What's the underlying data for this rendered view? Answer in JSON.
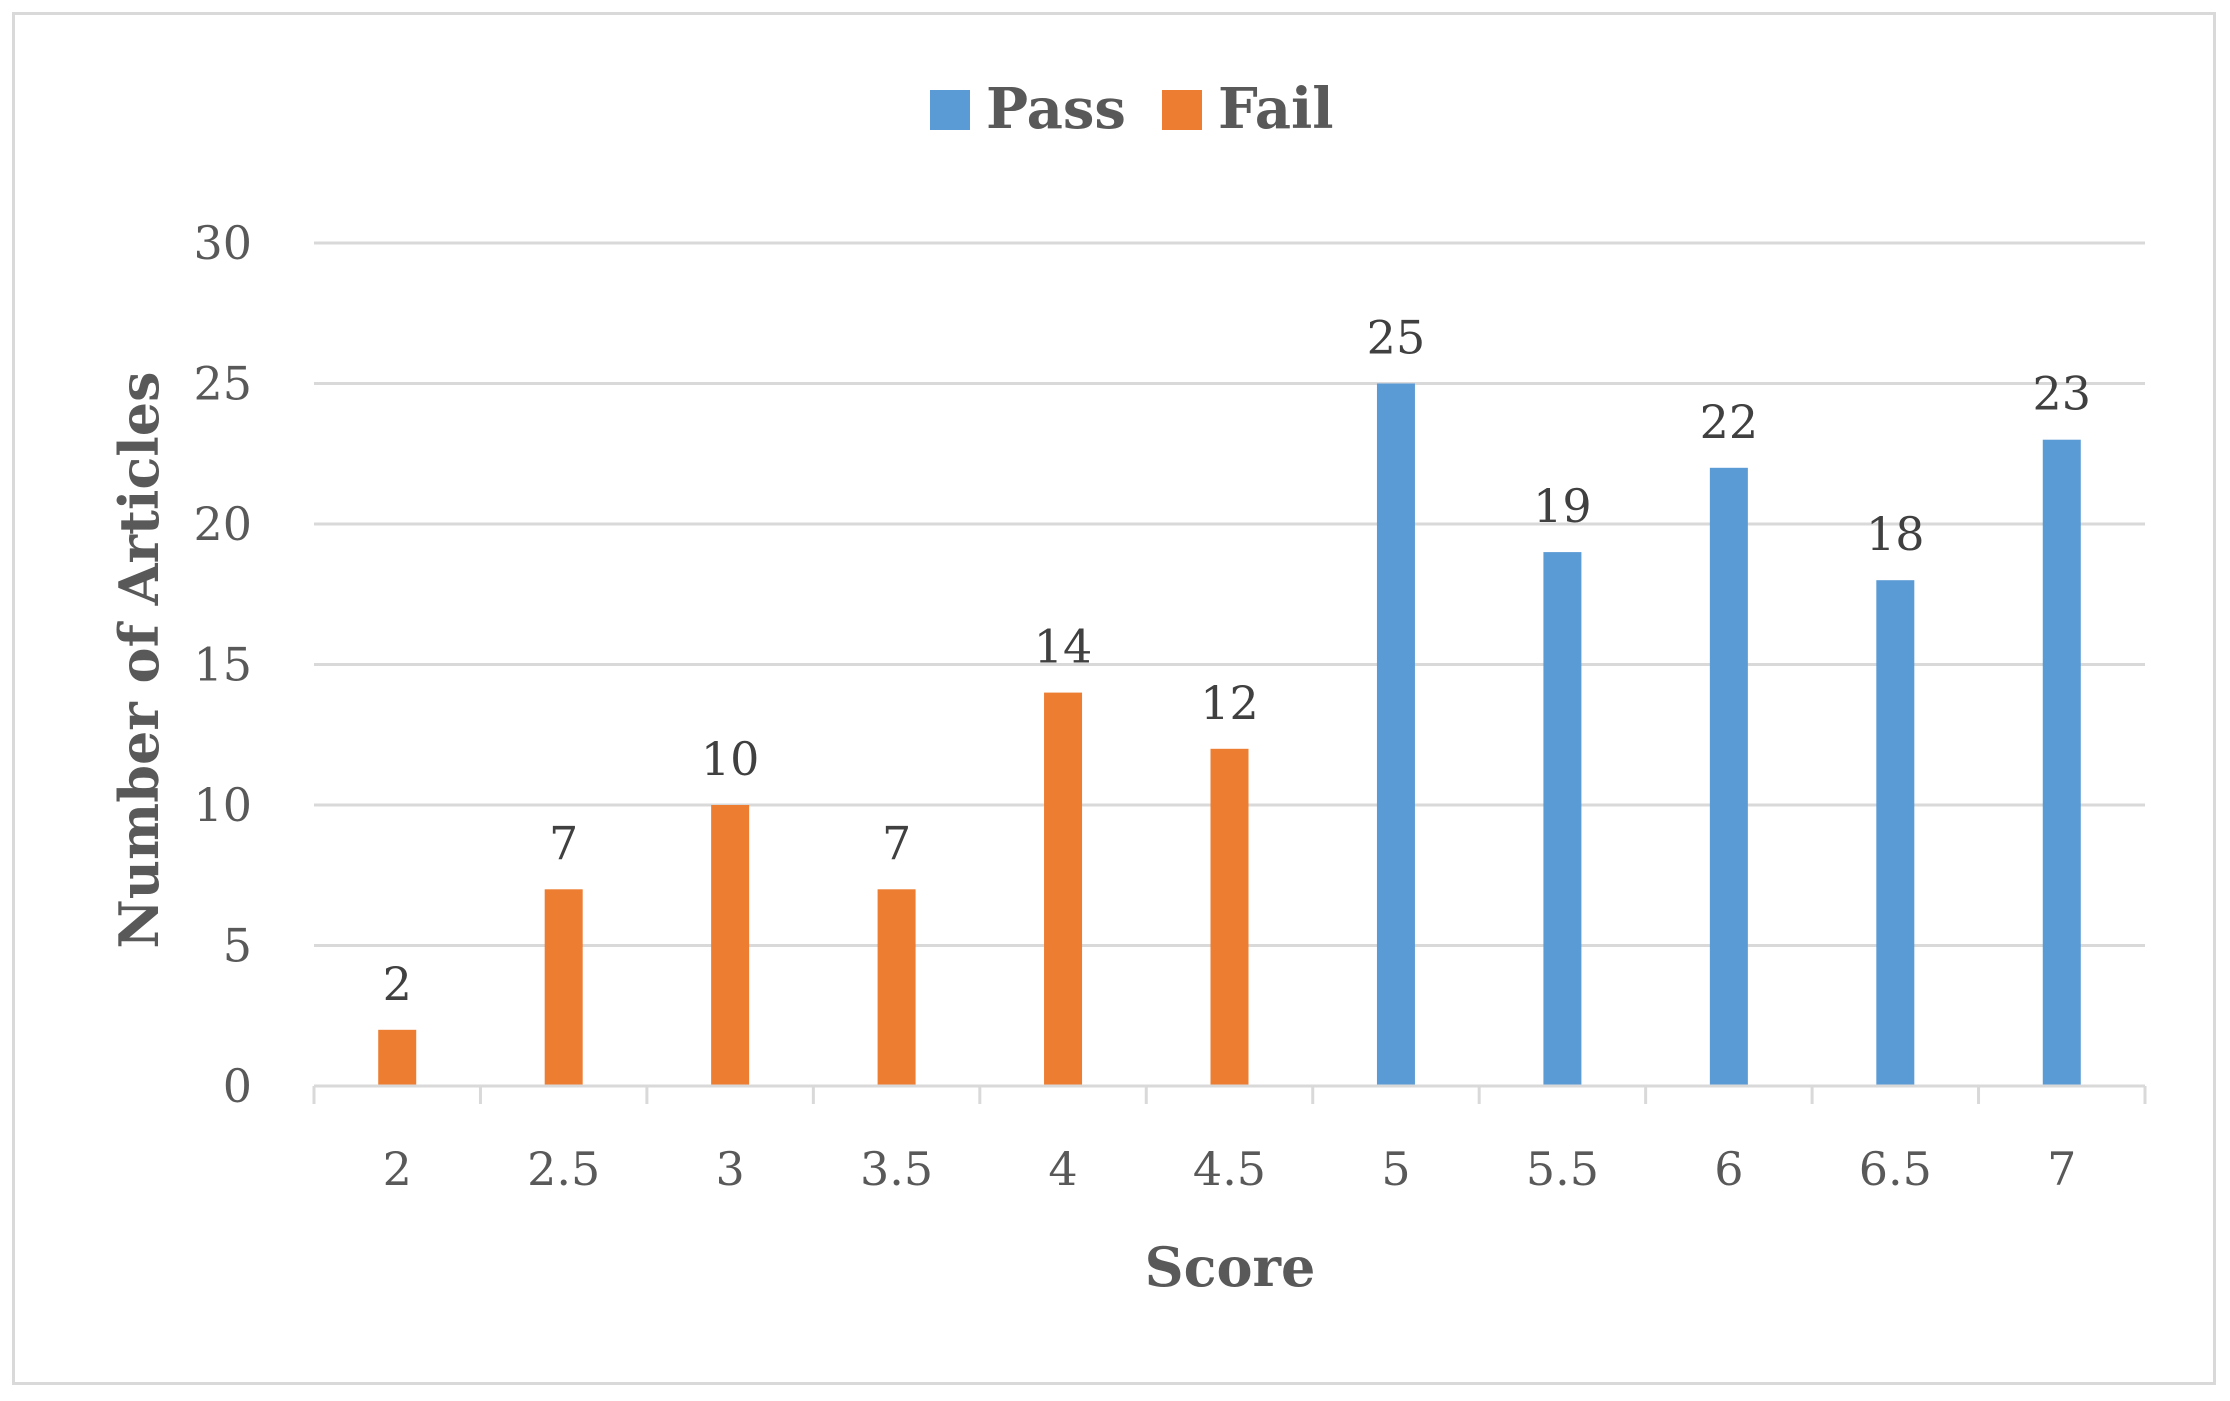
{
  "chart_data": {
    "type": "bar",
    "categories": [
      "2",
      "2.5",
      "3",
      "3.5",
      "4",
      "4.5",
      "5",
      "5.5",
      "6",
      "6.5",
      "7"
    ],
    "series": [
      {
        "name": "Pass",
        "color": "#5b9bd5",
        "values": [
          null,
          null,
          null,
          null,
          null,
          null,
          25,
          19,
          22,
          18,
          23
        ]
      },
      {
        "name": "Fail",
        "color": "#ed7d31",
        "values": [
          2,
          7,
          10,
          7,
          14,
          12,
          null,
          null,
          null,
          null,
          null
        ]
      }
    ],
    "xlabel": "Score",
    "ylabel": "Number of Articles",
    "ylim": [
      0,
      30
    ],
    "yticks": [
      0,
      5,
      10,
      15,
      20,
      25,
      30
    ],
    "grid": true,
    "legend": "top-center"
  }
}
